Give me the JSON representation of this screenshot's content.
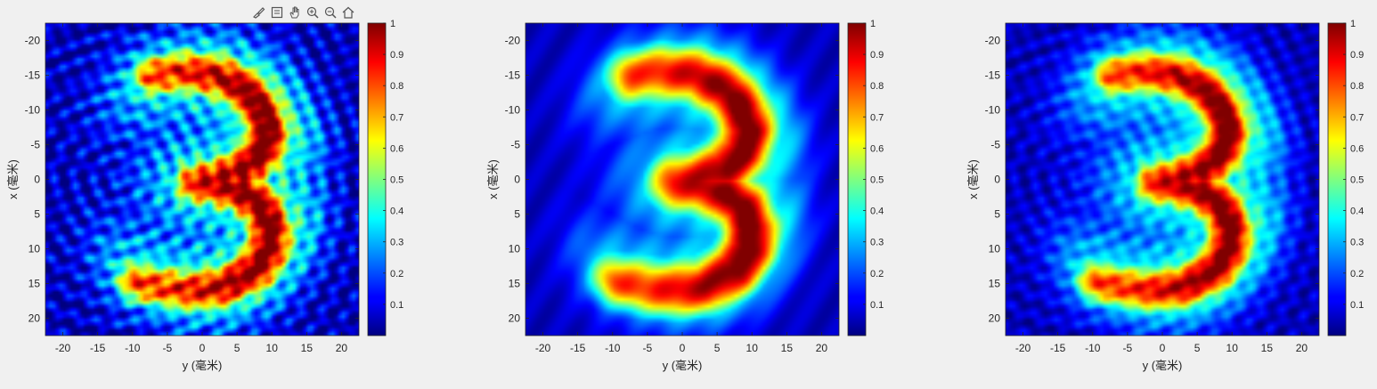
{
  "toolbar": {
    "buttons": [
      {
        "name": "brush-icon"
      },
      {
        "name": "datatip-icon"
      },
      {
        "name": "pan-hand-icon"
      },
      {
        "name": "zoom-in-icon"
      },
      {
        "name": "zoom-out-icon"
      },
      {
        "name": "home-icon"
      }
    ]
  },
  "colors": {
    "background": "#f0f0f0",
    "axis": "#262626",
    "colormap": "jet"
  },
  "chart_data": [
    {
      "type": "heatmap",
      "xlabel": "y (毫米)",
      "ylabel": "x (毫米)",
      "xlim": [
        -22.5,
        22.5
      ],
      "ylim": [
        -22.5,
        22.5
      ],
      "y_reversed": true,
      "xticks": [
        -20,
        -15,
        -10,
        -5,
        0,
        5,
        10,
        15,
        20
      ],
      "yticks": [
        -20,
        -15,
        -10,
        -5,
        0,
        5,
        10,
        15,
        20
      ],
      "colorbar": {
        "range": [
          0,
          1
        ],
        "ticks": [
          "0.1",
          "0.2",
          "0.3",
          "0.4",
          "0.5",
          "0.6",
          "0.7",
          "0.8",
          "0.9",
          "1"
        ]
      },
      "content": "digit 3 intensity pattern, speckled reconstruction",
      "variant": "noisy"
    },
    {
      "type": "heatmap",
      "xlabel": "y (毫米)",
      "ylabel": "x (毫米)",
      "xlim": [
        -22.5,
        22.5
      ],
      "ylim": [
        -22.5,
        22.5
      ],
      "y_reversed": true,
      "xticks": [
        -20,
        -15,
        -10,
        -5,
        0,
        5,
        10,
        15,
        20
      ],
      "yticks": [
        -20,
        -15,
        -10,
        -5,
        0,
        5,
        10,
        15,
        20
      ],
      "colorbar": {
        "range": [
          0,
          1
        ],
        "ticks": [
          "0.1",
          "0.2",
          "0.3",
          "0.4",
          "0.5",
          "0.6",
          "0.7",
          "0.8",
          "0.9",
          "1"
        ]
      },
      "content": "digit 3 intensity pattern, smooth target",
      "variant": "smooth"
    },
    {
      "type": "heatmap",
      "xlabel": "y (毫米)",
      "ylabel": "x (毫米)",
      "xlim": [
        -22.5,
        22.5
      ],
      "ylim": [
        -22.5,
        22.5
      ],
      "y_reversed": true,
      "xticks": [
        -20,
        -15,
        -10,
        -5,
        0,
        5,
        10,
        15,
        20
      ],
      "yticks": [
        -20,
        -15,
        -10,
        -5,
        0,
        5,
        10,
        15,
        20
      ],
      "colorbar": {
        "range": [
          0,
          1
        ],
        "ticks": [
          "0.1",
          "0.2",
          "0.3",
          "0.4",
          "0.5",
          "0.6",
          "0.7",
          "0.8",
          "0.9",
          "1"
        ]
      },
      "content": "digit 3 intensity pattern, reconstruction",
      "variant": "clean"
    }
  ]
}
